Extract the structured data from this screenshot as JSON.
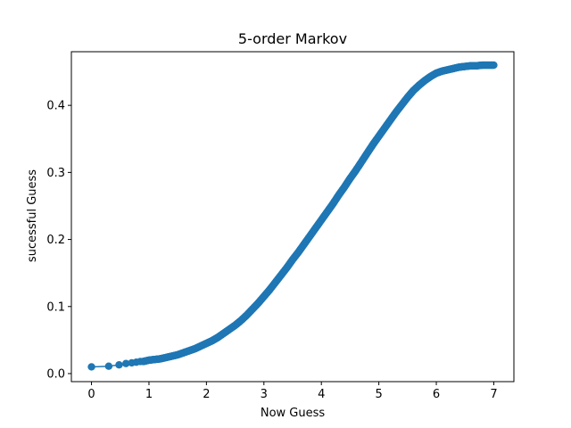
{
  "chart_data": {
    "type": "line",
    "title": "5-order Markov",
    "xlabel": "Now Guess",
    "ylabel": "sucessful Guess",
    "xlim": [
      -0.35,
      7.35
    ],
    "ylim": [
      -0.012,
      0.48
    ],
    "x_ticks": [
      "0",
      "1",
      "2",
      "3",
      "4",
      "5",
      "6",
      "7"
    ],
    "y_ticks": [
      "0.0",
      "0.1",
      "0.2",
      "0.3",
      "0.4"
    ],
    "grid": false,
    "marker": "circle",
    "series": [
      {
        "color": "#1f77b4",
        "points": [
          [
            0.0,
            0.01
          ],
          [
            0.3,
            0.011
          ],
          [
            0.48,
            0.013
          ],
          [
            0.6,
            0.015
          ],
          [
            0.7,
            0.016
          ],
          [
            0.78,
            0.017
          ],
          [
            0.85,
            0.018
          ],
          [
            0.9,
            0.018
          ],
          [
            0.95,
            0.019
          ],
          [
            1.0,
            0.02
          ],
          [
            1.1,
            0.021
          ],
          [
            1.2,
            0.022
          ],
          [
            1.3,
            0.024
          ],
          [
            1.4,
            0.026
          ],
          [
            1.5,
            0.028
          ],
          [
            1.6,
            0.031
          ],
          [
            1.7,
            0.034
          ],
          [
            1.8,
            0.037
          ],
          [
            1.9,
            0.041
          ],
          [
            2.0,
            0.045
          ],
          [
            2.1,
            0.049
          ],
          [
            2.2,
            0.054
          ],
          [
            2.3,
            0.06
          ],
          [
            2.4,
            0.066
          ],
          [
            2.5,
            0.072
          ],
          [
            2.6,
            0.079
          ],
          [
            2.7,
            0.087
          ],
          [
            2.8,
            0.096
          ],
          [
            2.9,
            0.105
          ],
          [
            3.0,
            0.115
          ],
          [
            3.1,
            0.125
          ],
          [
            3.2,
            0.136
          ],
          [
            3.3,
            0.147
          ],
          [
            3.4,
            0.158
          ],
          [
            3.5,
            0.17
          ],
          [
            3.6,
            0.181
          ],
          [
            3.7,
            0.193
          ],
          [
            3.8,
            0.205
          ],
          [
            3.9,
            0.217
          ],
          [
            4.0,
            0.229
          ],
          [
            4.1,
            0.241
          ],
          [
            4.2,
            0.253
          ],
          [
            4.3,
            0.266
          ],
          [
            4.4,
            0.278
          ],
          [
            4.5,
            0.291
          ],
          [
            4.6,
            0.303
          ],
          [
            4.7,
            0.316
          ],
          [
            4.8,
            0.329
          ],
          [
            4.9,
            0.342
          ],
          [
            5.0,
            0.354
          ],
          [
            5.1,
            0.366
          ],
          [
            5.2,
            0.378
          ],
          [
            5.3,
            0.39
          ],
          [
            5.4,
            0.401
          ],
          [
            5.5,
            0.412
          ],
          [
            5.6,
            0.422
          ],
          [
            5.7,
            0.43
          ],
          [
            5.8,
            0.437
          ],
          [
            5.9,
            0.443
          ],
          [
            6.0,
            0.448
          ],
          [
            6.1,
            0.451
          ],
          [
            6.2,
            0.453
          ],
          [
            6.3,
            0.455
          ],
          [
            6.4,
            0.457
          ],
          [
            6.5,
            0.458
          ],
          [
            6.6,
            0.459
          ],
          [
            6.7,
            0.459
          ],
          [
            6.8,
            0.46
          ],
          [
            6.9,
            0.46
          ],
          [
            7.0,
            0.46
          ]
        ]
      }
    ]
  }
}
